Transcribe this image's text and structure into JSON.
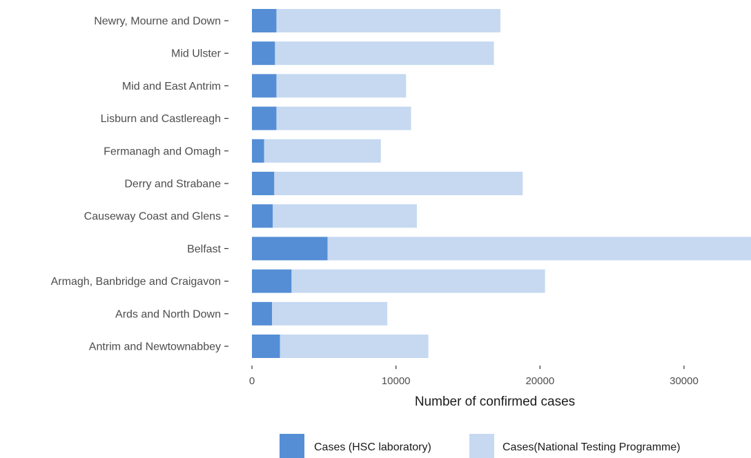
{
  "chart_data": {
    "type": "bar",
    "orientation": "horizontal",
    "stacked": true,
    "categories": [
      "Newry, Mourne and Down",
      "Mid Ulster",
      "Mid and East Antrim",
      "Lisburn and Castlereagh",
      "Fermanagh and Omagh",
      "Derry and Strabane",
      "Causeway Coast and Glens",
      "Belfast",
      "Armagh, Banbridge and Craigavon",
      "Ards and North Down",
      "Antrim and Newtownabbey"
    ],
    "series": [
      {
        "name": "Cases (HSC laboratory)",
        "color": "#558ed5",
        "values": [
          1700,
          1600,
          1700,
          1700,
          850,
          1550,
          1450,
          5250,
          2750,
          1400,
          1950
        ]
      },
      {
        "name": "Cases(National Testing Programme)",
        "color": "#c6d9f1",
        "values": [
          15550,
          15200,
          9000,
          9350,
          8100,
          17250,
          10000,
          29400,
          17600,
          8000,
          10300
        ]
      }
    ],
    "xlabel": "Number of confirmed cases",
    "ylabel": "",
    "xlim": [
      0,
      34650
    ],
    "xticks": [
      0,
      10000,
      20000,
      30000
    ],
    "xtick_labels": [
      "0",
      "10000",
      "20000",
      "30000"
    ],
    "grid": false,
    "legend_position": "bottom"
  }
}
